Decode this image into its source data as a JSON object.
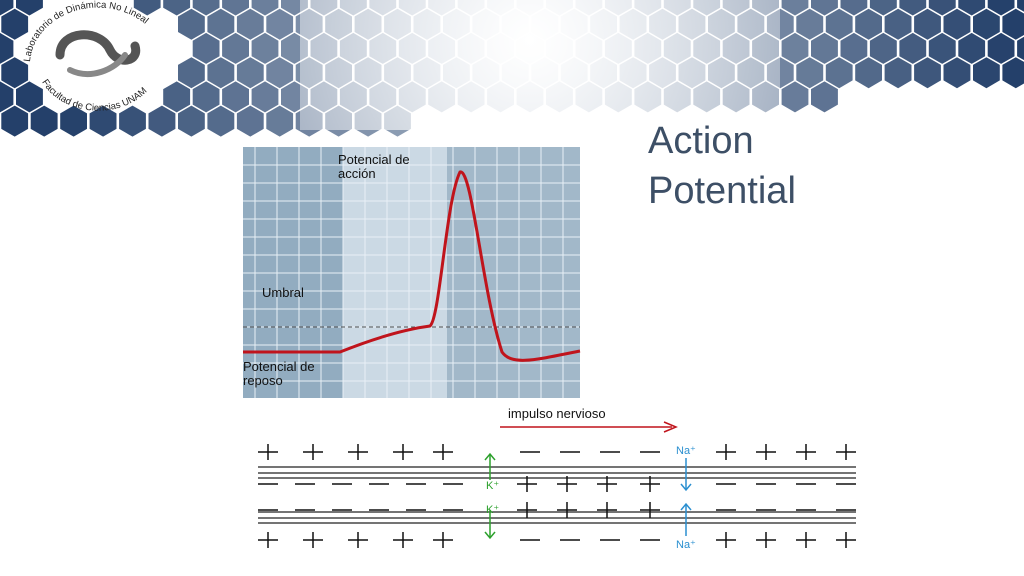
{
  "logo": {
    "top_text": "Laboratorio de Dinámica No Lineal",
    "bottom_text": "Facultad de Ciencias UNAM"
  },
  "title": "Action Potential",
  "graph": {
    "peak_label": "Potencial de acción",
    "threshold_label": "Umbral",
    "rest_label": "Potencial de reposo"
  },
  "membrane": {
    "impulse_label": "impulso nervioso",
    "k_label": "K⁺",
    "na_label": "Na⁺"
  }
}
